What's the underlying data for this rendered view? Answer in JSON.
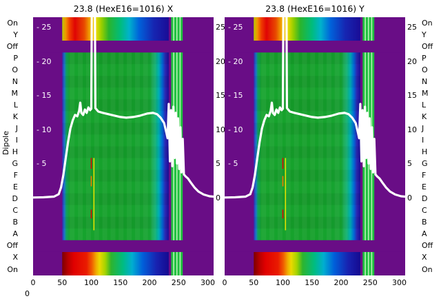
{
  "figure": {
    "ylabel": "Dipole",
    "stray_label": "0",
    "panels": [
      {
        "title": "23.8 (HexE16=1016) X"
      },
      {
        "title": "23.8 (HexE16=1016) Y"
      }
    ]
  },
  "chart_data": {
    "type": "heatmap",
    "description": "Two side-by-side dipole response heatmaps (X and Y planes) with a white beam-profile line overlaid; purple background with rainbow response bands",
    "panel_titles": [
      "23.8 (HexE16=1016) X",
      "23.8 (HexE16=1016) Y"
    ],
    "x_axis": {
      "range": [
        0,
        310
      ],
      "ticks": [
        0,
        50,
        100,
        150,
        200,
        250,
        300
      ]
    },
    "row_axis": {
      "label": "Dipole",
      "rows_top_to_bottom": [
        "On",
        "Y",
        "Off",
        "P",
        "O",
        "N",
        "M",
        "L",
        "K",
        "J",
        "I",
        "H",
        "G",
        "F",
        "E",
        "D",
        "C",
        "B",
        "A",
        "Off",
        "X",
        "On"
      ]
    },
    "overlay_axis": {
      "range": [
        0,
        26.5
      ],
      "inner_ticks": [
        {
          "v": 25,
          "label": "- 25"
        },
        {
          "v": 20,
          "label": "- 20"
        },
        {
          "v": 15,
          "label": "- 15"
        },
        {
          "v": 10,
          "label": "- 10"
        },
        {
          "v": 5,
          "label": "- 5"
        }
      ],
      "outer_right_ticks": [
        {
          "v": 25,
          "label": "25"
        },
        {
          "v": 20,
          "label": "20"
        },
        {
          "v": 15,
          "label": "15"
        },
        {
          "v": 10,
          "label": "10"
        },
        {
          "v": 5,
          "label": "5"
        },
        {
          "v": 0,
          "label": "0"
        }
      ]
    },
    "heatmap": {
      "background_color": "#690d86",
      "active_x_range": [
        50,
        233
      ],
      "off_rows": [
        2,
        19
      ],
      "middle_gradient": [
        [
          50,
          "#3a2ab6"
        ],
        [
          54,
          "#1a7ac8"
        ],
        [
          57,
          "#12a060"
        ],
        [
          63,
          "#17a42e"
        ],
        [
          150,
          "#15a02a"
        ],
        [
          200,
          "#17a432"
        ],
        [
          210,
          "#10b274"
        ],
        [
          216,
          "#00aeb6"
        ],
        [
          222,
          "#0268d6"
        ],
        [
          227,
          "#2b28b2"
        ],
        [
          233,
          "#1c0c98"
        ]
      ],
      "top_gradient": [
        [
          50,
          "#bac800"
        ],
        [
          56,
          "#f09600"
        ],
        [
          63,
          "#ee3c00"
        ],
        [
          72,
          "#e00404"
        ],
        [
          88,
          "#e84a00"
        ],
        [
          97,
          "#f0a200"
        ],
        [
          108,
          "#eeda00"
        ],
        [
          118,
          "#94ce00"
        ],
        [
          130,
          "#2ab42c"
        ],
        [
          150,
          "#00bc7c"
        ],
        [
          165,
          "#00b2cc"
        ],
        [
          182,
          "#0062da"
        ],
        [
          207,
          "#1626b2"
        ],
        [
          233,
          "#1a0c96"
        ]
      ],
      "bottom_gradient": [
        [
          50,
          "#7c0000"
        ],
        [
          60,
          "#b80000"
        ],
        [
          70,
          "#e00000"
        ],
        [
          92,
          "#ea1c00"
        ],
        [
          101,
          "#f05e00"
        ],
        [
          108,
          "#f0a800"
        ],
        [
          114,
          "#ecd800"
        ],
        [
          124,
          "#a4d400"
        ],
        [
          134,
          "#2eb42e"
        ],
        [
          154,
          "#00bc80"
        ],
        [
          170,
          "#00aed0"
        ],
        [
          188,
          "#0060da"
        ],
        [
          212,
          "#1822b0"
        ],
        [
          233,
          "#150a90"
        ]
      ],
      "green_column": {
        "x_range": [
          237,
          257
        ],
        "color": "#1fbf3e",
        "stripe_color": "#c9f6c2",
        "stripe_xs": [
          240.5,
          246,
          251.5
        ]
      },
      "markers": [
        {
          "color": "#e00000",
          "x": 100,
          "y_frac": 0.545,
          "h_frac": 0.042
        },
        {
          "color": "#f07800",
          "x": 100,
          "y_frac": 0.615,
          "h_frac": 0.04
        },
        {
          "color": "#e00000",
          "x": 100,
          "y_frac": 0.745,
          "h_frac": 0.034
        },
        {
          "color": "#e2e200",
          "x": 104.5,
          "y_frac": 0.545,
          "h_frac": 0.28
        }
      ]
    },
    "overlay_line": {
      "color": "#ffffff",
      "width": 3.2,
      "points": [
        [
          0,
          0.12
        ],
        [
          18,
          0.15
        ],
        [
          36,
          0.25
        ],
        [
          44,
          0.6
        ],
        [
          48,
          1.6
        ],
        [
          52,
          3.4
        ],
        [
          56,
          5.8
        ],
        [
          60,
          8.2
        ],
        [
          64,
          10.2
        ],
        [
          68,
          11.4
        ],
        [
          72,
          12.2
        ],
        [
          76,
          12.0
        ],
        [
          79,
          12.8
        ],
        [
          81,
          14.0
        ],
        [
          83,
          12.5
        ],
        [
          86,
          12.2
        ],
        [
          89,
          13.0
        ],
        [
          92,
          12.5
        ],
        [
          95,
          13.3
        ],
        [
          98,
          12.9
        ],
        [
          100,
          13.1
        ],
        [
          101,
          31
        ],
        [
          106,
          31
        ],
        [
          107,
          13.2
        ],
        [
          112,
          12.7
        ],
        [
          120,
          12.5
        ],
        [
          130,
          12.3
        ],
        [
          140,
          12.1
        ],
        [
          150,
          11.9
        ],
        [
          160,
          11.8
        ],
        [
          172,
          11.9
        ],
        [
          184,
          12.1
        ],
        [
          196,
          12.4
        ],
        [
          206,
          12.5
        ],
        [
          213,
          12.3
        ],
        [
          219,
          11.8
        ],
        [
          225,
          11.0
        ],
        [
          229,
          9.6
        ],
        [
          231,
          8.8
        ],
        [
          233,
          13.8
        ],
        [
          235,
          5.4
        ],
        [
          237,
          12.9
        ],
        [
          239,
          4.7
        ],
        [
          241,
          13.4
        ],
        [
          243,
          5.9
        ],
        [
          245,
          12.5
        ],
        [
          247,
          5.1
        ],
        [
          249,
          11.7
        ],
        [
          251,
          4.3
        ],
        [
          253,
          10.4
        ],
        [
          255,
          3.8
        ],
        [
          257,
          8.7
        ],
        [
          259,
          3.5
        ],
        [
          262,
          3.2
        ],
        [
          266,
          2.9
        ],
        [
          271,
          2.3
        ],
        [
          277,
          1.6
        ],
        [
          284,
          1.0
        ],
        [
          293,
          0.55
        ],
        [
          303,
          0.3
        ],
        [
          310,
          0.25
        ]
      ]
    }
  }
}
